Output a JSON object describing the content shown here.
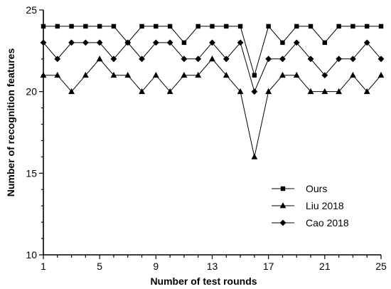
{
  "chart_data": {
    "type": "line",
    "title": "",
    "xlabel": "Number of test rounds",
    "ylabel": "Number of recognition features",
    "x": [
      1,
      2,
      3,
      4,
      5,
      6,
      7,
      8,
      9,
      10,
      11,
      12,
      13,
      14,
      15,
      16,
      17,
      18,
      19,
      20,
      21,
      22,
      23,
      24,
      25
    ],
    "xlim": [
      1,
      25
    ],
    "ylim": [
      10,
      25
    ],
    "xticks": [
      1,
      5,
      9,
      13,
      17,
      21,
      25
    ],
    "yticks": [
      10,
      15,
      20,
      25
    ],
    "grid": false,
    "legend_position": "bottom-right",
    "series": [
      {
        "name": "Ours",
        "marker": "square",
        "color": "#000000",
        "values": [
          24,
          24,
          24,
          24,
          24,
          24,
          23,
          24,
          24,
          24,
          23,
          24,
          24,
          24,
          24,
          21,
          24,
          23,
          24,
          24,
          23,
          24,
          24,
          24,
          24
        ]
      },
      {
        "name": "Liu 2018",
        "marker": "triangle",
        "color": "#000000",
        "values": [
          21,
          21,
          20,
          21,
          22,
          21,
          21,
          20,
          21,
          20,
          21,
          21,
          22,
          21,
          20,
          16,
          20,
          21,
          21,
          20,
          20,
          20,
          21,
          20,
          21
        ]
      },
      {
        "name": "Cao 2018",
        "marker": "diamond",
        "color": "#000000",
        "values": [
          23,
          22,
          23,
          23,
          23,
          22,
          23,
          22,
          23,
          23,
          22,
          22,
          23,
          22,
          23,
          20,
          22,
          22,
          23,
          22,
          21,
          22,
          22,
          23,
          22
        ]
      }
    ]
  }
}
